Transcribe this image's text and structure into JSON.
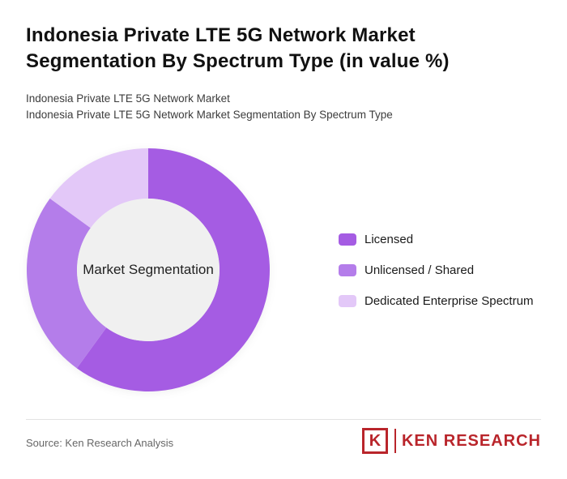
{
  "header": {
    "title": "Indonesia Private LTE 5G Network Market Segmentation By Spectrum Type (in value %)",
    "subtitle1": "Indonesia Private LTE 5G Network Market",
    "subtitle2": "Indonesia Private LTE 5G Network Market Segmentation By Spectrum Type"
  },
  "chart_data": {
    "type": "pie",
    "donut": true,
    "title": "Indonesia Private LTE 5G Network Market Segmentation By Spectrum Type (in value %)",
    "center_label": "Market Segmentation",
    "categories": [
      "Licensed",
      "Unlicensed / Shared",
      "Dedicated Enterprise Spectrum"
    ],
    "values": [
      60,
      25,
      15
    ],
    "colors": [
      "#a55ce3",
      "#b47dea",
      "#e3c8f8"
    ],
    "start_angle_deg": 0,
    "legend_position": "right",
    "center_fill": "#f0f0f0"
  },
  "legend": {
    "items": [
      {
        "label": "Licensed",
        "color": "#a55ce3"
      },
      {
        "label": "Unlicensed / Shared",
        "color": "#b47dea"
      },
      {
        "label": "Dedicated Enterprise Spectrum",
        "color": "#e3c8f8"
      }
    ]
  },
  "footer": {
    "source": "Source: Ken Research Analysis",
    "logo": {
      "letter": "K",
      "text": "KEN RESEARCH",
      "color": "#b9252b"
    }
  }
}
